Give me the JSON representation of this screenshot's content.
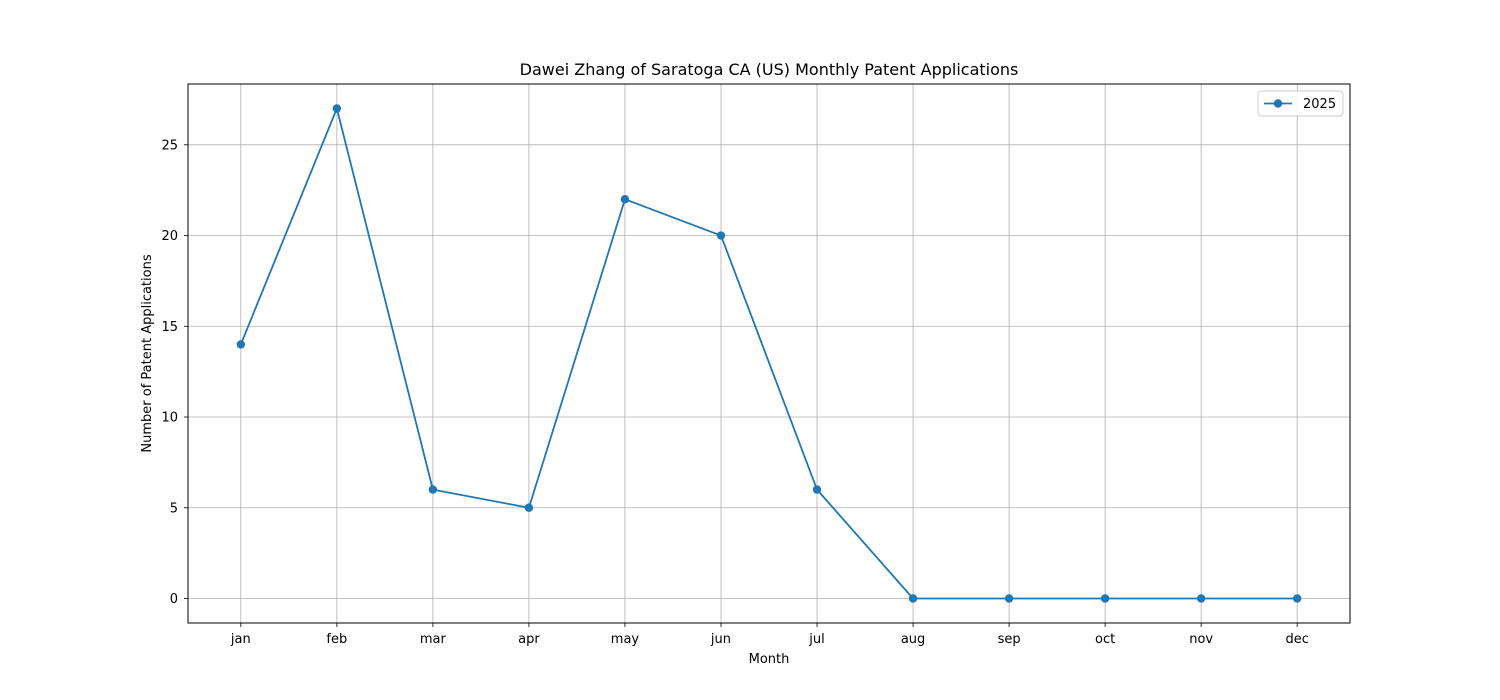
{
  "chart_data": {
    "type": "line",
    "title": "Dawei Zhang of Saratoga CA (US) Monthly Patent Applications",
    "xlabel": "Month",
    "ylabel": "Number of Patent Applications",
    "categories": [
      "jan",
      "feb",
      "mar",
      "apr",
      "may",
      "jun",
      "jul",
      "aug",
      "sep",
      "oct",
      "nov",
      "dec"
    ],
    "series": [
      {
        "name": "2025",
        "values": [
          14,
          27,
          6,
          5,
          22,
          20,
          6,
          0,
          0,
          0,
          0,
          0
        ],
        "color": "#1f77b4",
        "marker": "circle"
      }
    ],
    "ylim": [
      -1.35,
      28.35
    ],
    "yticks": [
      0,
      5,
      10,
      15,
      20,
      25
    ],
    "grid": true,
    "legend_position": "top-right",
    "colors": {
      "grid": "#b0b0b0",
      "axis": "#000000",
      "series": "#1f77b4"
    }
  }
}
